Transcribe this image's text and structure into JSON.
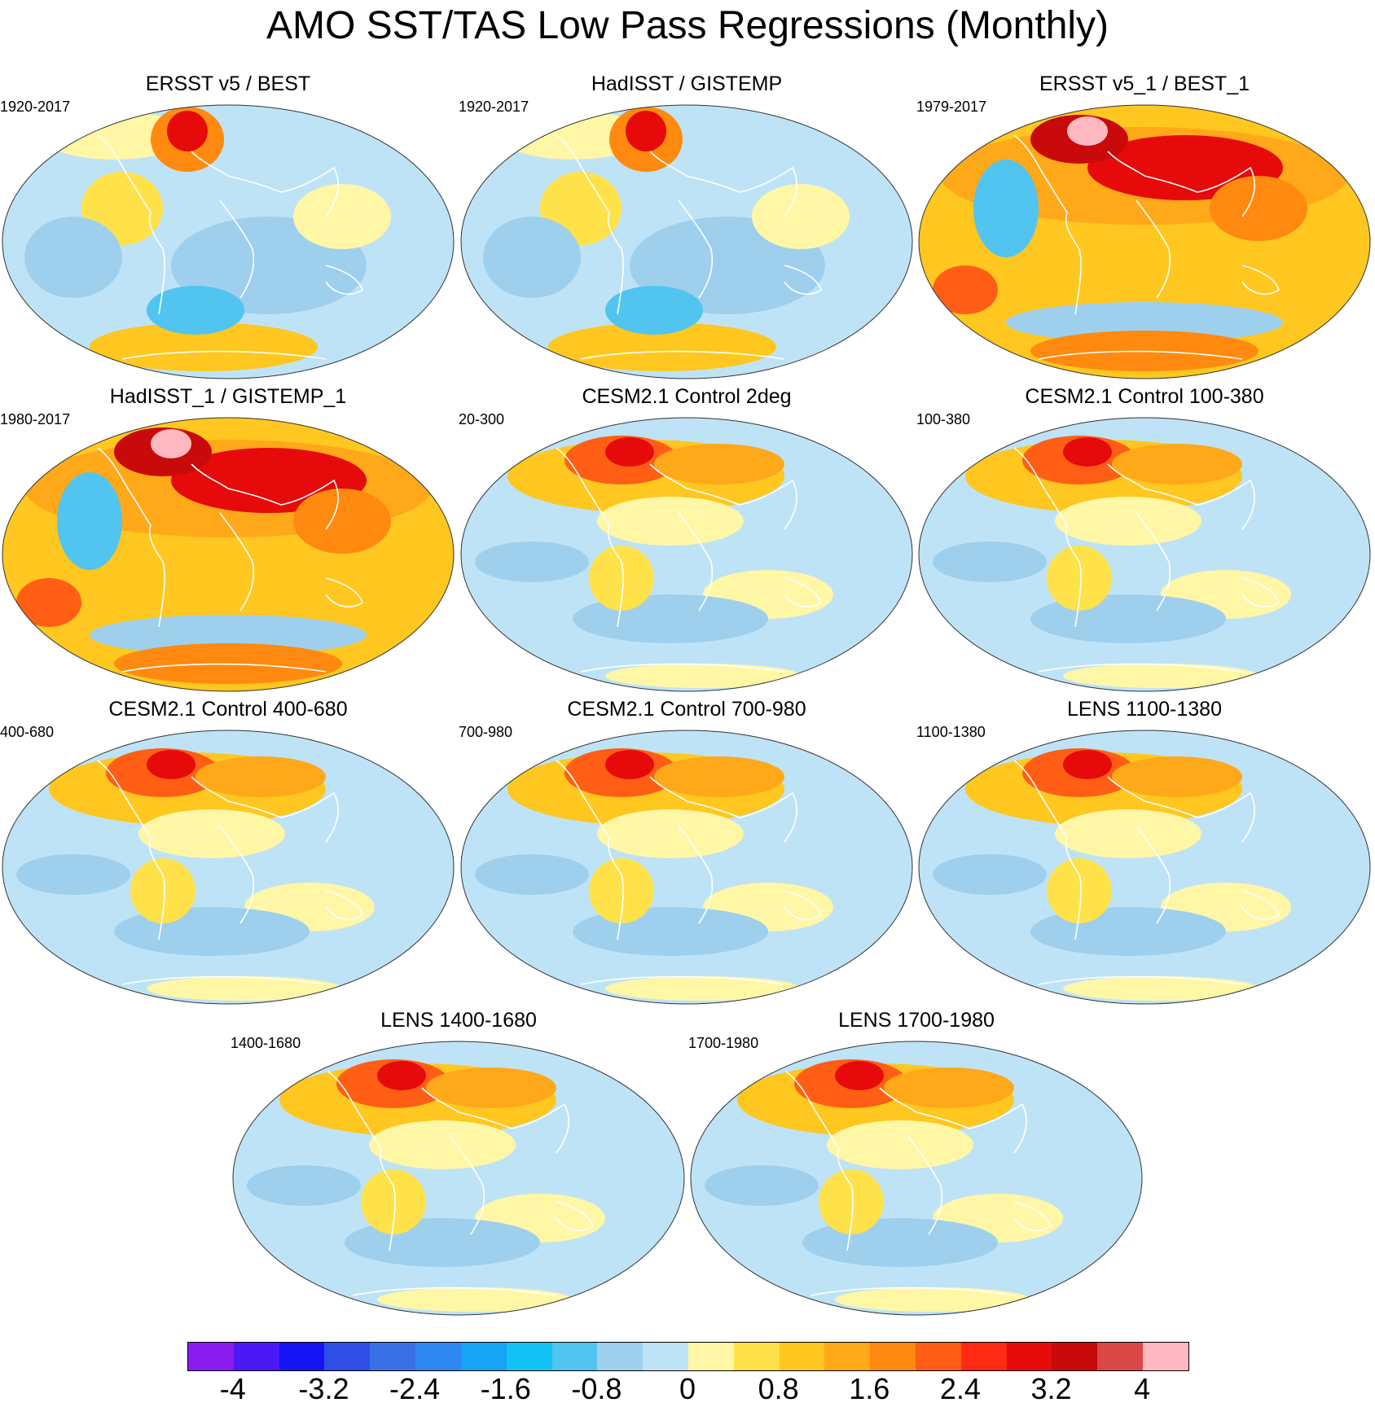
{
  "figure": {
    "title": "AMO SST/TAS Low Pass Regressions (Monthly)"
  },
  "panels": [
    {
      "title": "ERSST v5 / BEST",
      "period": "1920-2017",
      "scheme": "mixed_cool"
    },
    {
      "title": "HadISST / GISTEMP",
      "period": "1920-2017",
      "scheme": "mixed_cool"
    },
    {
      "title": "ERSST v5_1 / BEST_1",
      "period": "1979-2017",
      "scheme": "warm"
    },
    {
      "title": "HadISST_1 / GISTEMP_1",
      "period": "1980-2017",
      "scheme": "warm"
    },
    {
      "title": "CESM2.1 Control 2deg",
      "period": "20-300",
      "scheme": "mixed_north"
    },
    {
      "title": "CESM2.1 Control 100-380",
      "period": "100-380",
      "scheme": "mixed_north"
    },
    {
      "title": "CESM2.1 Control 400-680",
      "period": "400-680",
      "scheme": "mixed_north"
    },
    {
      "title": "CESM2.1 Control 700-980",
      "period": "700-980",
      "scheme": "mixed_north"
    },
    {
      "title": "LENS 1100-1380",
      "period": "1100-1380",
      "scheme": "mixed_north"
    },
    {
      "title": "LENS 1400-1680",
      "period": "1400-1680",
      "scheme": "mixed_north"
    },
    {
      "title": "LENS 1700-1980",
      "period": "1700-1980",
      "scheme": "mixed_north"
    }
  ],
  "colorbar": {
    "colors": [
      "#8a1cf0",
      "#4b19f5",
      "#1414f5",
      "#2e4ee6",
      "#3a70e6",
      "#2e86f0",
      "#16a4f5",
      "#12c2f5",
      "#52c4f0",
      "#9ed0ee",
      "#bfe3f6",
      "#fff7a6",
      "#ffe14a",
      "#ffc71f",
      "#ffa81a",
      "#ff8a0f",
      "#ff5e14",
      "#ff2a14",
      "#e60a0a",
      "#c80a0a",
      "#d94747",
      "#ffb8c0"
    ],
    "tick_labels": [
      "-4",
      "-3.2",
      "-2.4",
      "-1.6",
      "-0.8",
      "0",
      "0.8",
      "1.6",
      "2.4",
      "3.2",
      "4"
    ],
    "min": -4.4,
    "max": 4.4,
    "units": ""
  }
}
